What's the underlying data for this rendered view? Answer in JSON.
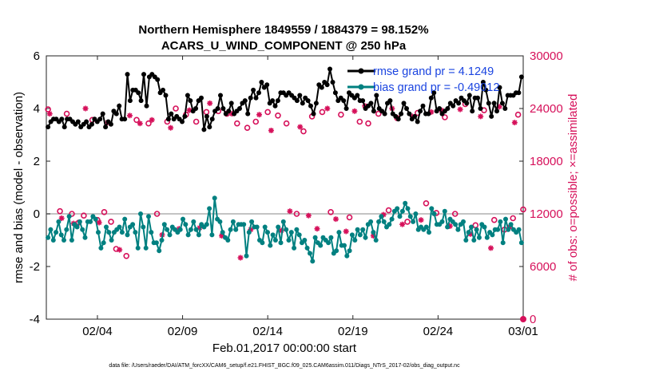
{
  "chart_data": {
    "type": "line",
    "title_line1": "Northern Hemisphere 1849559 / 1884379 = 98.152%",
    "title_line2": "ACARS_U_WIND_COMPONENT @ 250 hPa",
    "ylabel_left": "rmse and bias (model - observation)",
    "ylabel_right": "# of obs: o=possible; ×=assimilated",
    "xlabel": "Feb.01,2017 00:00:00 start",
    "footer": "data file: /Users/raeder/DAI/ATM_forcXX/CAM6_setup/f.e21.FHIST_BGC.f09_025.CAM6assim.011/Diags_NTrS_2017-02/obs_diag_output.nc",
    "ylim_left": [
      -4,
      6
    ],
    "ylim_right": [
      0,
      30000
    ],
    "xlim": [
      0,
      28
    ],
    "yticks_left": [
      "-4",
      "-2",
      "0",
      "2",
      "4",
      "6"
    ],
    "yticks_right": [
      "0",
      "6000",
      "12000",
      "18000",
      "24000",
      "30000"
    ],
    "xticks": [
      {
        "label": "02/04",
        "day": 3
      },
      {
        "label": "02/09",
        "day": 8
      },
      {
        "label": "02/14",
        "day": 13
      },
      {
        "label": "02/19",
        "day": 18
      },
      {
        "label": "02/24",
        "day": 23
      },
      {
        "label": "03/01",
        "day": 28
      }
    ],
    "legend": [
      {
        "name": "rmse grand pr = 4.1249",
        "color": "#000000"
      },
      {
        "name": "bias grand pr = -0.49012",
        "color": "#008080"
      }
    ],
    "colors": {
      "rmse": "#000000",
      "bias": "#008080",
      "obs": "#d6105a",
      "right_axis": "#d6105a",
      "zero_line": "#b0b0b0",
      "legend_text": "#1a44e0"
    },
    "rmse_values": [
      3.3,
      3.5,
      3.6,
      3.6,
      3.5,
      3.6,
      3.3,
      3.6,
      3.6,
      3.5,
      3.4,
      3.5,
      3.3,
      3.4,
      3.5,
      3.3,
      3.4,
      3.6,
      3.5,
      3.6,
      3.8,
      3.3,
      3.5,
      3.4,
      3.9,
      3.8,
      4.1,
      3.6,
      3.6,
      5.3,
      4.3,
      4.7,
      4.7,
      4.6,
      4.3,
      5.3,
      4.1,
      5.2,
      5.3,
      5.2,
      5.1,
      4.6,
      4.7,
      4.5,
      3.6,
      3.8,
      3.6,
      3.7,
      3.6,
      3.5,
      3.7,
      4.5,
      4.3,
      3.9,
      4.0,
      4.3,
      4.4,
      3.2,
      3.7,
      3.3,
      3.6,
      3.9,
      4.0,
      4.5,
      4.0,
      3.8,
      3.9,
      4.2,
      3.8,
      3.9,
      4.0,
      4.2,
      4.3,
      3.8,
      4.4,
      4.7,
      4.4,
      4.6,
      5.0,
      4.8,
      4.9,
      4.2,
      4.3,
      4.1,
      4.3,
      4.6,
      4.6,
      4.5,
      4.6,
      4.5,
      4.4,
      4.3,
      4.5,
      4.2,
      4.4,
      4.3,
      4.1,
      3.8,
      4.2,
      4.9,
      4.8,
      5.0,
      4.9,
      5.5,
      5.0,
      4.6,
      4.3,
      4.4,
      4.3,
      4.0,
      4.6,
      4.5,
      4.4,
      4.5,
      4.3,
      4.3,
      4.0,
      4.1,
      4.2,
      3.9,
      4.5,
      4.0,
      3.9,
      3.8,
      4.2,
      4.3,
      3.8,
      3.7,
      3.6,
      3.8,
      4.2,
      4.0,
      3.8,
      3.6,
      3.7,
      3.5,
      3.9,
      4.1,
      3.8,
      3.8,
      4.4,
      4.6,
      3.9,
      4.0,
      3.8,
      3.9,
      4.0,
      4.2,
      4.1,
      4.3,
      4.2,
      4.4,
      4.3,
      4.2,
      4.5,
      3.9,
      4.4,
      4.4,
      4.0,
      5.0,
      4.7,
      4.2,
      3.7,
      4.2,
      3.9,
      4.8,
      4.2,
      4.0,
      4.5,
      4.5,
      4.5,
      4.6,
      4.6,
      5.2
    ],
    "bias_values": [
      -0.9,
      -0.6,
      -1.0,
      -0.7,
      -0.3,
      -0.8,
      -1.0,
      -0.6,
      -0.1,
      -1.0,
      -0.4,
      -0.5,
      -0.3,
      -0.6,
      -0.9,
      -0.3,
      -0.3,
      -0.1,
      -0.2,
      -0.7,
      -1.3,
      -1.1,
      -0.5,
      -0.7,
      -1.0,
      -0.7,
      -0.6,
      -0.5,
      -0.7,
      -0.2,
      -0.8,
      -0.5,
      -0.4,
      -0.7,
      -1.3,
      0.0,
      -0.5,
      -1.3,
      -0.1,
      -0.7,
      -1.1,
      -1.1,
      -1.4,
      -1.0,
      -0.4,
      -0.6,
      -0.8,
      -0.5,
      -0.6,
      -0.7,
      -0.6,
      -0.2,
      -0.4,
      -0.8,
      -0.6,
      -0.3,
      -0.6,
      -0.8,
      -0.4,
      -0.5,
      -0.4,
      0.2,
      -0.8,
      0.6,
      -0.2,
      -0.3,
      -0.7,
      -0.9,
      -1.0,
      -0.6,
      -0.3,
      -0.6,
      -0.4,
      -0.4,
      -0.4,
      -1.6,
      -0.7,
      -0.3,
      -0.5,
      -0.5,
      -1.0,
      -1.1,
      -0.5,
      -0.7,
      -1.2,
      -0.8,
      -1.0,
      -0.5,
      -1.1,
      -0.3,
      -0.6,
      -1.0,
      -0.7,
      -1.3,
      -0.6,
      -0.8,
      -1.1,
      -1.0,
      -1.3,
      -1.5,
      -1.8,
      -0.9,
      -1.1,
      -1.2,
      -0.9,
      -1.0,
      -1.1,
      -0.9,
      -1.5,
      -1.4,
      -0.7,
      -1.2,
      -1.2,
      -1.6,
      -1.4,
      -0.8,
      -1.0,
      -0.6,
      -0.8,
      -0.6,
      -0.9,
      -0.4,
      -0.3,
      -0.7,
      -1.0,
      -0.3,
      -0.1,
      -0.3,
      -0.5,
      -0.4,
      -0.2,
      0.1,
      0.2,
      -0.1,
      0.1,
      0.4,
      0.2,
      -0.1,
      -0.3,
      0.0,
      -0.6,
      -0.5,
      -0.6,
      -0.5,
      -0.7,
      0.2,
      0.0,
      -0.4,
      -0.4,
      -0.3,
      0.1,
      -0.5,
      -0.2,
      -0.3,
      -0.4,
      -0.6,
      -0.4,
      -0.3,
      -1.0,
      -0.7,
      -0.5,
      -1.0,
      -0.6,
      -0.9,
      -0.4,
      -0.5,
      -0.9,
      -0.7,
      -0.8,
      -0.6,
      -0.6,
      -0.3,
      -1.1,
      -0.2,
      -0.6,
      -0.4,
      -0.6,
      -0.7,
      -0.6,
      -1.1
    ],
    "obs_possible": [
      [
        0.1,
        23900
      ],
      [
        0.8,
        12300
      ],
      [
        1.5,
        12000
      ],
      [
        2.2,
        11800
      ],
      [
        3.0,
        11300
      ],
      [
        3.8,
        11100
      ],
      [
        1.2,
        23400
      ],
      [
        1.9,
        11000
      ],
      [
        2.7,
        22700
      ],
      [
        3.4,
        12200
      ],
      [
        4.1,
        8000
      ],
      [
        4.7,
        7200
      ],
      [
        5.3,
        22700
      ],
      [
        6.0,
        22300
      ],
      [
        6.5,
        12000
      ],
      [
        7.1,
        22500
      ],
      [
        7.6,
        24000
      ],
      [
        8.2,
        23300
      ],
      [
        8.8,
        22500
      ],
      [
        9.4,
        23600
      ],
      [
        10.1,
        23700
      ],
      [
        10.6,
        23400
      ],
      [
        11.2,
        22300
      ],
      [
        11.8,
        21800
      ],
      [
        12.3,
        22500
      ],
      [
        13.0,
        23600
      ],
      [
        13.6,
        23200
      ],
      [
        14.1,
        22300
      ],
      [
        14.7,
        12000
      ],
      [
        15.1,
        21400
      ],
      [
        15.6,
        23100
      ],
      [
        16.2,
        23600
      ],
      [
        16.7,
        12200
      ],
      [
        17.3,
        23300
      ],
      [
        17.8,
        11600
      ],
      [
        18.4,
        22500
      ],
      [
        18.9,
        22300
      ],
      [
        19.5,
        23400
      ],
      [
        20.1,
        12400
      ],
      [
        20.6,
        22900
      ],
      [
        21.2,
        11100
      ],
      [
        21.8,
        23500
      ],
      [
        22.3,
        13200
      ],
      [
        22.9,
        12100
      ],
      [
        23.4,
        23000
      ],
      [
        24.0,
        12000
      ],
      [
        24.6,
        24500
      ],
      [
        25.2,
        10700
      ],
      [
        25.7,
        23800
      ],
      [
        26.3,
        11300
      ],
      [
        26.9,
        10200
      ],
      [
        27.4,
        11500
      ],
      [
        28.0,
        12500
      ],
      [
        27.7,
        23300
      ]
    ],
    "obs_assimilated": [
      [
        0.2,
        23400
      ],
      [
        0.9,
        11500
      ],
      [
        1.6,
        10900
      ],
      [
        2.3,
        24000
      ],
      [
        3.1,
        11000
      ],
      [
        3.6,
        22400
      ],
      [
        4.3,
        7900
      ],
      [
        4.9,
        23200
      ],
      [
        5.5,
        22300
      ],
      [
        6.2,
        22700
      ],
      [
        6.8,
        9600
      ],
      [
        7.3,
        21800
      ],
      [
        7.8,
        10300
      ],
      [
        8.4,
        23800
      ],
      [
        9.0,
        10400
      ],
      [
        9.6,
        24600
      ],
      [
        10.3,
        9500
      ],
      [
        10.9,
        23400
      ],
      [
        11.4,
        7000
      ],
      [
        12.0,
        10200
      ],
      [
        12.5,
        23300
      ],
      [
        13.2,
        21500
      ],
      [
        13.8,
        10100
      ],
      [
        14.3,
        12300
      ],
      [
        14.9,
        21900
      ],
      [
        15.4,
        11800
      ],
      [
        15.9,
        10300
      ],
      [
        16.5,
        24000
      ],
      [
        17.0,
        11400
      ],
      [
        17.6,
        10000
      ],
      [
        18.1,
        23700
      ],
      [
        18.7,
        24300
      ],
      [
        19.2,
        9500
      ],
      [
        19.8,
        11900
      ],
      [
        20.3,
        24000
      ],
      [
        20.9,
        10800
      ],
      [
        21.5,
        23100
      ],
      [
        22.0,
        11300
      ],
      [
        22.6,
        23600
      ],
      [
        23.2,
        23800
      ],
      [
        23.7,
        10600
      ],
      [
        24.3,
        23900
      ],
      [
        24.9,
        9700
      ],
      [
        25.5,
        23100
      ],
      [
        26.1,
        8100
      ],
      [
        26.6,
        24200
      ],
      [
        27.2,
        10500
      ],
      [
        27.5,
        22400
      ]
    ]
  }
}
